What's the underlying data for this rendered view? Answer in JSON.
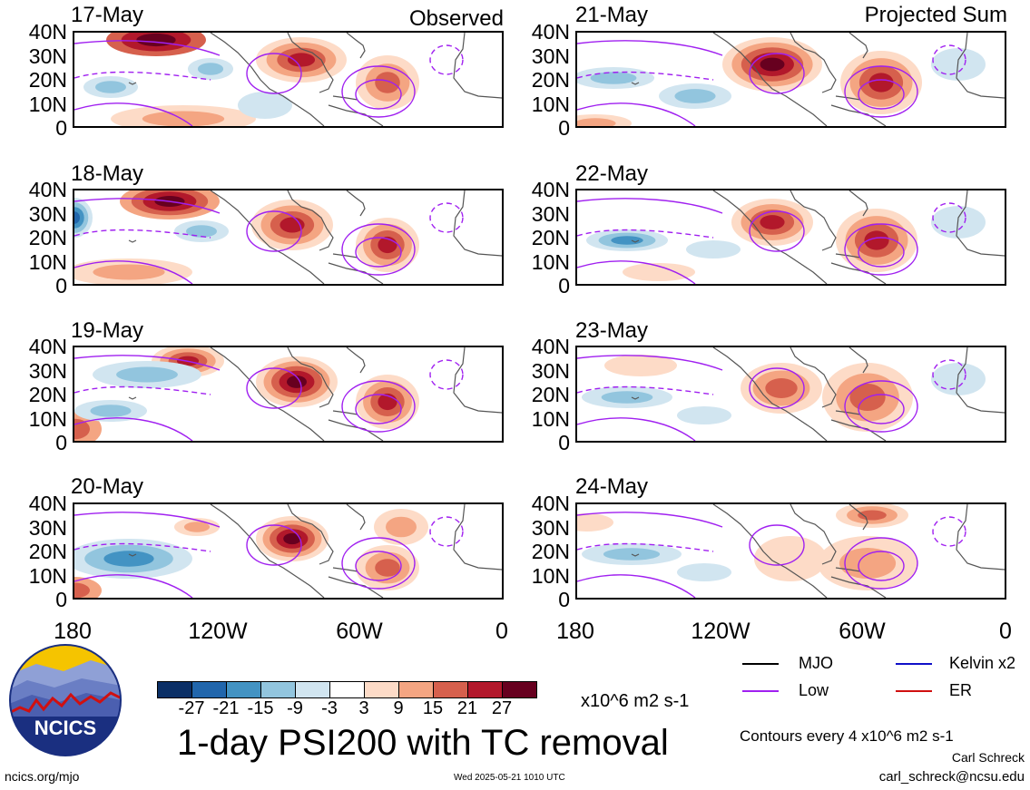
{
  "header": {
    "left_label": "Observed",
    "right_label": "Projected Sum"
  },
  "panels": {
    "left": [
      "17-May",
      "18-May",
      "19-May",
      "20-May"
    ],
    "right": [
      "21-May",
      "22-May",
      "23-May",
      "24-May"
    ]
  },
  "axes": {
    "y_ticks": [
      "40N",
      "30N",
      "20N",
      "10N",
      "0"
    ],
    "x_ticks": [
      "180",
      "120W",
      "60W",
      "0"
    ]
  },
  "colorbar": {
    "colors": [
      "#0b2f66",
      "#2166ac",
      "#4393c3",
      "#92c5de",
      "#d1e5f0",
      "#ffffff",
      "#fddbc7",
      "#f4a582",
      "#d6604d",
      "#b2182b",
      "#67001f"
    ],
    "labels": [
      "-27",
      "-21",
      "-15",
      "-9",
      "-3",
      "3",
      "9",
      "15",
      "21",
      "27"
    ],
    "units": "x10^6 m2 s-1"
  },
  "legend": {
    "mjo": {
      "label": "MJO",
      "color": "#000000"
    },
    "kelvin": {
      "label": "Kelvin x2",
      "color": "#1010c8"
    },
    "low": {
      "label": "Low",
      "color": "#a020f0"
    },
    "er": {
      "label": "ER",
      "color": "#d01010"
    }
  },
  "title": "1-day PSI200 with TC removal",
  "contour_note": "Contours every 4 x10^6 m2 s-1",
  "author": "Carl Schreck",
  "email": "carl_schreck@ncsu.edu",
  "website": "ncics.org/mjo",
  "timestamp": "Wed 2025-05-21 1010 UTC",
  "logo_text": "NCICS"
}
